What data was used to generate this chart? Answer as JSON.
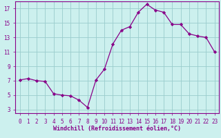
{
  "x": [
    0,
    1,
    2,
    3,
    4,
    5,
    6,
    7,
    8,
    9,
    10,
    11,
    12,
    13,
    14,
    15,
    16,
    17,
    18,
    19,
    20,
    21,
    22,
    23
  ],
  "y": [
    7.1,
    7.3,
    7.0,
    6.9,
    5.2,
    5.0,
    4.9,
    4.3,
    3.3,
    7.1,
    8.6,
    12.1,
    14.0,
    14.5,
    16.5,
    17.6,
    16.8,
    16.5,
    14.8,
    14.8,
    13.5,
    13.2,
    13.0,
    11.0
  ],
  "line_color": "#880088",
  "marker": "D",
  "marker_size": 2.2,
  "bg_color": "#ccf0ee",
  "grid_color": "#99cccc",
  "xlabel": "Windchill (Refroidissement éolien,°C)",
  "ylabel": "",
  "title": "",
  "xlim": [
    -0.5,
    23.5
  ],
  "ylim": [
    2.5,
    18.0
  ],
  "yticks": [
    3,
    5,
    7,
    9,
    11,
    13,
    15,
    17
  ],
  "xtick_labels": [
    "0",
    "1",
    "2",
    "3",
    "4",
    "5",
    "6",
    "7",
    "8",
    "9",
    "10",
    "11",
    "12",
    "13",
    "14",
    "15",
    "16",
    "17",
    "18",
    "19",
    "20",
    "21",
    "22",
    "23"
  ],
  "xlabel_color": "#880088",
  "tick_color": "#880088",
  "spine_color": "#880088",
  "tick_fontsize": 5.5,
  "xlabel_fontsize": 6.0
}
